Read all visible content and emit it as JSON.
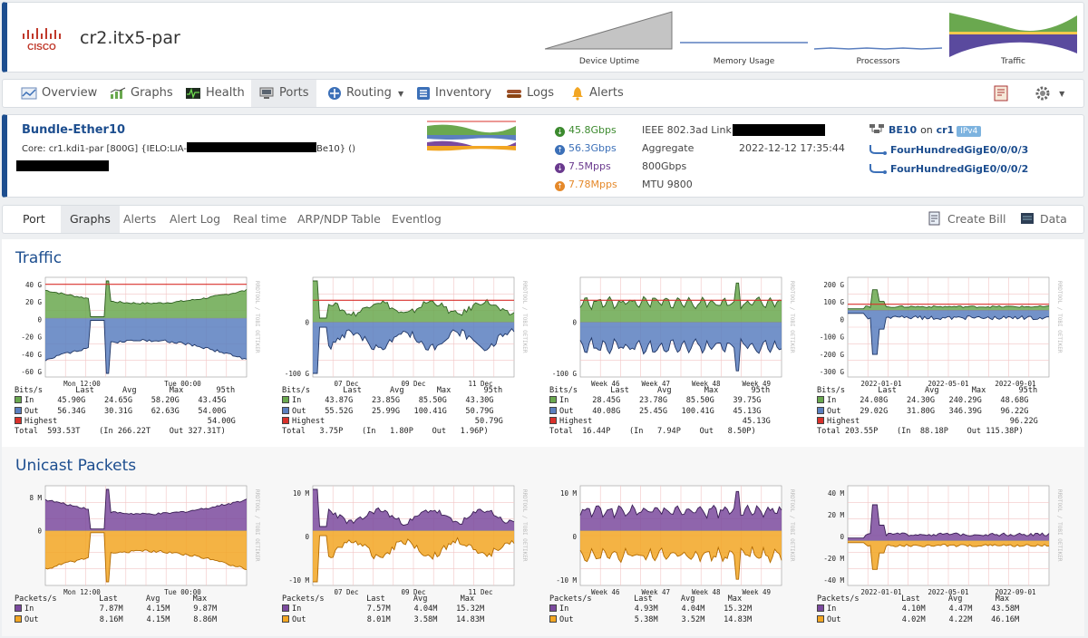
{
  "device": {
    "name": "cr2.itx5-par",
    "logo_text": "CISCO",
    "mini_graphs": [
      {
        "label": "Device Uptime",
        "icon": "uptime-graph"
      },
      {
        "label": "Memory Usage",
        "icon": "memory-graph"
      },
      {
        "label": "Processors",
        "icon": "processor-graph"
      },
      {
        "label": "Traffic",
        "icon": "traffic-graph"
      }
    ]
  },
  "nav": {
    "items": [
      {
        "label": "Overview",
        "icon": "overview-icon"
      },
      {
        "label": "Graphs",
        "icon": "graphs-icon"
      },
      {
        "label": "Health",
        "icon": "health-icon"
      },
      {
        "label": "Ports",
        "icon": "ports-icon",
        "active": true
      },
      {
        "label": "Routing",
        "icon": "routing-icon",
        "dropdown": true
      },
      {
        "label": "Inventory",
        "icon": "inventory-icon"
      },
      {
        "label": "Logs",
        "icon": "logs-icon"
      },
      {
        "label": "Alerts",
        "icon": "alerts-icon"
      }
    ]
  },
  "port": {
    "name": "Bundle-Ether10",
    "description_prefix": "Core: cr1.kdi1-par [800G] {IELO:LIA-",
    "description_suffix": "Be10} ()",
    "stats": {
      "in_rate": "45.8Gbps",
      "out_rate": "56.3Gbps",
      "in_pps": "7.5Mpps",
      "out_pps": "7.78Mpps"
    },
    "info": {
      "type": "IEEE 802.3ad Link",
      "mode": "Aggregate",
      "speed": "800Gbps",
      "mtu": "MTU 9800",
      "changed": "2022-12-12 17:35:44"
    },
    "parent": {
      "label": "BE10",
      "on": "on",
      "device": "cr1",
      "badge": "IPv4"
    },
    "members": [
      "FourHundredGigE0/0/0/3",
      "FourHundredGigE0/0/0/2"
    ]
  },
  "tabs": {
    "items": [
      "Port",
      "Graphs",
      "Alerts",
      "Alert Log",
      "Real time",
      "ARP/NDP Table",
      "Eventlog"
    ],
    "active": "Graphs",
    "actions": [
      "Create Bill",
      "Data"
    ]
  },
  "sections": {
    "traffic": "Traffic",
    "unicast": "Unicast Packets"
  },
  "colors": {
    "in": "#6aa84f",
    "out": "#5b7fbf",
    "highest": "#d9312b",
    "pkt_in": "#7b4a9e",
    "pkt_out": "#f2a623",
    "brand": "#1d4e8f"
  },
  "traffic_graphs": [
    {
      "title": "",
      "y_ticks": [
        "40 G",
        "20 G",
        "0",
        "-20 G",
        "-40 G",
        "-60 G"
      ],
      "x_ticks": [
        "Mon 12:00",
        "Tue 00:00"
      ],
      "legend_head": "Bits/s       Last      Avg       Max       95th",
      "rows": [
        {
          "label": "In",
          "values": "     45.90G    24.65G    58.20G    43.45G"
        },
        {
          "label": "Out",
          "values": "    56.34G    30.31G    62.63G    54.00G"
        },
        {
          "label": "Highest",
          "values": "                                54.00G"
        }
      ],
      "total": "Total  593.53T    (In 266.22T    Out 327.31T)"
    },
    {
      "title": "",
      "y_ticks": [
        "0",
        "-100 G"
      ],
      "x_ticks": [
        "07 Dec",
        "09 Dec",
        "11 Dec"
      ],
      "legend_head": "Bits/s       Last      Avg       Max       95th",
      "rows": [
        {
          "label": "In",
          "values": "     43.87G    23.85G    85.50G    43.30G"
        },
        {
          "label": "Out",
          "values": "    55.52G    25.99G   100.41G    50.79G"
        },
        {
          "label": "Highest",
          "values": "                                50.79G"
        }
      ],
      "total": "Total   3.75P    (In   1.80P    Out   1.96P)"
    },
    {
      "title": "",
      "y_ticks": [
        "0",
        "-100 G"
      ],
      "x_ticks": [
        "Week 46",
        "Week 47",
        "Week 48",
        "Week 49"
      ],
      "legend_head": "Bits/s       Last      Avg       Max       95th",
      "rows": [
        {
          "label": "In",
          "values": "     28.45G    23.78G    85.50G    39.75G"
        },
        {
          "label": "Out",
          "values": "    40.08G    25.45G   100.41G    45.13G"
        },
        {
          "label": "Highest",
          "values": "                                45.13G"
        }
      ],
      "total": "Total  16.44P    (In   7.94P    Out   8.50P)"
    },
    {
      "title": "",
      "y_ticks": [
        "200 G",
        "100 G",
        "0",
        "-100 G",
        "-200 G",
        "-300 G"
      ],
      "x_ticks": [
        "2022-01-01",
        "2022-05-01",
        "2022-09-01"
      ],
      "legend_head": "Bits/s       Last      Avg       Max       95th",
      "rows": [
        {
          "label": "In",
          "values": "     24.08G    24.30G   240.29G    48.68G"
        },
        {
          "label": "Out",
          "values": "    29.02G    31.80G   346.39G    96.22G"
        },
        {
          "label": "Highest",
          "values": "                                96.22G"
        }
      ],
      "total": "Total 203.55P    (In  88.18P    Out 115.38P)"
    }
  ],
  "packet_graphs": [
    {
      "y_ticks": [
        "8 M",
        "0"
      ],
      "x_ticks": [
        "Mon 12:00",
        "Tue 00:00"
      ],
      "legend_head": "Packets/s         Last      Avg       Max",
      "rows": [
        {
          "label": "In",
          "values": "              7.87M     4.15M     9.87M"
        },
        {
          "label": "Out",
          "values": "             8.16M     4.15M     8.86M"
        }
      ]
    },
    {
      "y_ticks": [
        "10 M",
        "0",
        "-10 M"
      ],
      "x_ticks": [
        "07 Dec",
        "09 Dec",
        "11 Dec"
      ],
      "legend_head": "Packets/s         Last      Avg       Max",
      "rows": [
        {
          "label": "In",
          "values": "              7.57M     4.04M    15.32M"
        },
        {
          "label": "Out",
          "values": "             8.01M     3.58M    14.83M"
        }
      ]
    },
    {
      "y_ticks": [
        "10 M",
        "0",
        "-10 M"
      ],
      "x_ticks": [
        "Week 46",
        "Week 47",
        "Week 48",
        "Week 49"
      ],
      "legend_head": "Packets/s         Last      Avg       Max",
      "rows": [
        {
          "label": "In",
          "values": "              4.93M     4.04M    15.32M"
        },
        {
          "label": "Out",
          "values": "             5.38M     3.52M    14.83M"
        }
      ]
    },
    {
      "y_ticks": [
        "40 M",
        "20 M",
        "0",
        "-20 M",
        "-40 M"
      ],
      "x_ticks": [
        "2022-01-01",
        "2022-05-01",
        "2022-09-01"
      ],
      "legend_head": "Packets/s         Last      Avg       Max",
      "rows": [
        {
          "label": "In",
          "values": "              4.10M     4.47M    43.58M"
        },
        {
          "label": "Out",
          "values": "             4.02M     4.22M    46.16M"
        }
      ]
    }
  ],
  "watermark": "RRDTOOL / TOBI OETIKER"
}
